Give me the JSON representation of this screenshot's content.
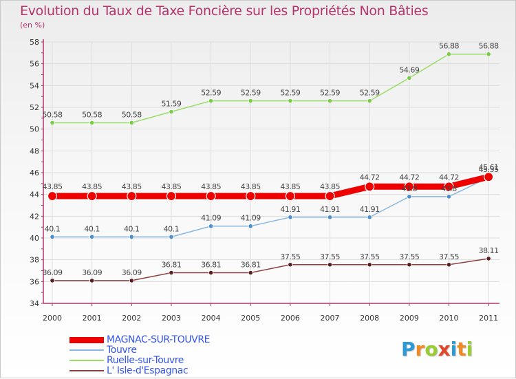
{
  "title": "Evolution du Taux de Taxe Foncière sur les Propriétés Non Bâties",
  "subtitle": "(en %)",
  "logo": {
    "text": "Proxiti",
    "letters": [
      "P",
      "r",
      "o",
      "x",
      "i",
      "t",
      "i"
    ],
    "colors": [
      "#2f9bd6",
      "#f08a24",
      "#9acd32",
      "#e2462a",
      "#2f9bd6",
      "#f08a24",
      "#9acd32"
    ]
  },
  "chart_data": {
    "type": "line",
    "title": "Evolution du Taux de Taxe Foncière sur les Propriétés Non Bâties",
    "ylabel": "(en %)",
    "xlabel": "",
    "categories": [
      "2000",
      "2001",
      "2002",
      "2003",
      "2004",
      "2005",
      "2006",
      "2007",
      "2008",
      "2009",
      "2010",
      "2011"
    ],
    "ylim": [
      34,
      58
    ],
    "yticks": [
      34,
      36,
      38,
      40,
      42,
      44,
      46,
      48,
      50,
      52,
      54,
      56,
      58
    ],
    "grid": true,
    "legend_position": "bottom-left",
    "series": [
      {
        "name": "Ruelle-sur-Touvre",
        "color": "#99dd66",
        "marker": "#77cc44",
        "bold": false,
        "values": [
          50.58,
          50.58,
          50.58,
          51.59,
          52.59,
          52.59,
          52.59,
          52.59,
          52.59,
          54.69,
          56.88,
          56.88
        ],
        "labels": [
          "50.58",
          "50.58",
          "50.58",
          "51.59",
          "52.59",
          "52.59",
          "52.59",
          "52.59",
          "52.59",
          "54.69",
          "56.88",
          "56.88"
        ]
      },
      {
        "name": "Touvre",
        "color": "#88b8e0",
        "marker": "#4a8fcc",
        "bold": false,
        "values": [
          40.1,
          40.1,
          40.1,
          40.1,
          41.09,
          41.09,
          41.91,
          41.91,
          41.91,
          43.8,
          43.8,
          45.55
        ],
        "labels": [
          "40.1",
          "40.1",
          "40.1",
          "40.1",
          "41.09",
          "41.09",
          "41.91",
          "41.91",
          "41.91",
          "43.8",
          "43.8",
          "45.55"
        ]
      },
      {
        "name": "L' Isle-d'Espagnac",
        "color": "#8a4040",
        "marker": "#5a2020",
        "bold": false,
        "values": [
          36.09,
          36.09,
          36.09,
          36.81,
          36.81,
          36.81,
          37.55,
          37.55,
          37.55,
          37.55,
          37.55,
          38.11
        ],
        "labels": [
          "36.09",
          "36.09",
          "36.09",
          "36.81",
          "36.81",
          "36.81",
          "37.55",
          "37.55",
          "37.55",
          "37.55",
          "37.55",
          "38.11"
        ]
      },
      {
        "name": "MAGNAC-SUR-TOUVRE",
        "color": "#ee0000",
        "marker": "#ee0000",
        "bold": true,
        "values": [
          43.85,
          43.85,
          43.85,
          43.85,
          43.85,
          43.85,
          43.85,
          43.85,
          44.72,
          44.72,
          44.72,
          45.61
        ],
        "labels": [
          "43.85",
          "43.85",
          "43.85",
          "43.85",
          "43.85",
          "43.85",
          "43.85",
          "43.85",
          "44.72",
          "44.72",
          "44.72",
          "45.61"
        ]
      }
    ],
    "legend": [
      {
        "name": "MAGNAC-SUR-TOUVRE",
        "color": "#ee0000",
        "text_color": "#3355ee",
        "bold": true
      },
      {
        "name": "Touvre",
        "color": "#88b8e0",
        "text_color": "#3355ee",
        "bold": false
      },
      {
        "name": "Ruelle-sur-Touvre",
        "color": "#99dd66",
        "text_color": "#3355ee",
        "bold": false
      },
      {
        "name": "L' Isle-d'Espagnac",
        "color": "#8a4040",
        "text_color": "#3355ee",
        "bold": false
      }
    ]
  }
}
